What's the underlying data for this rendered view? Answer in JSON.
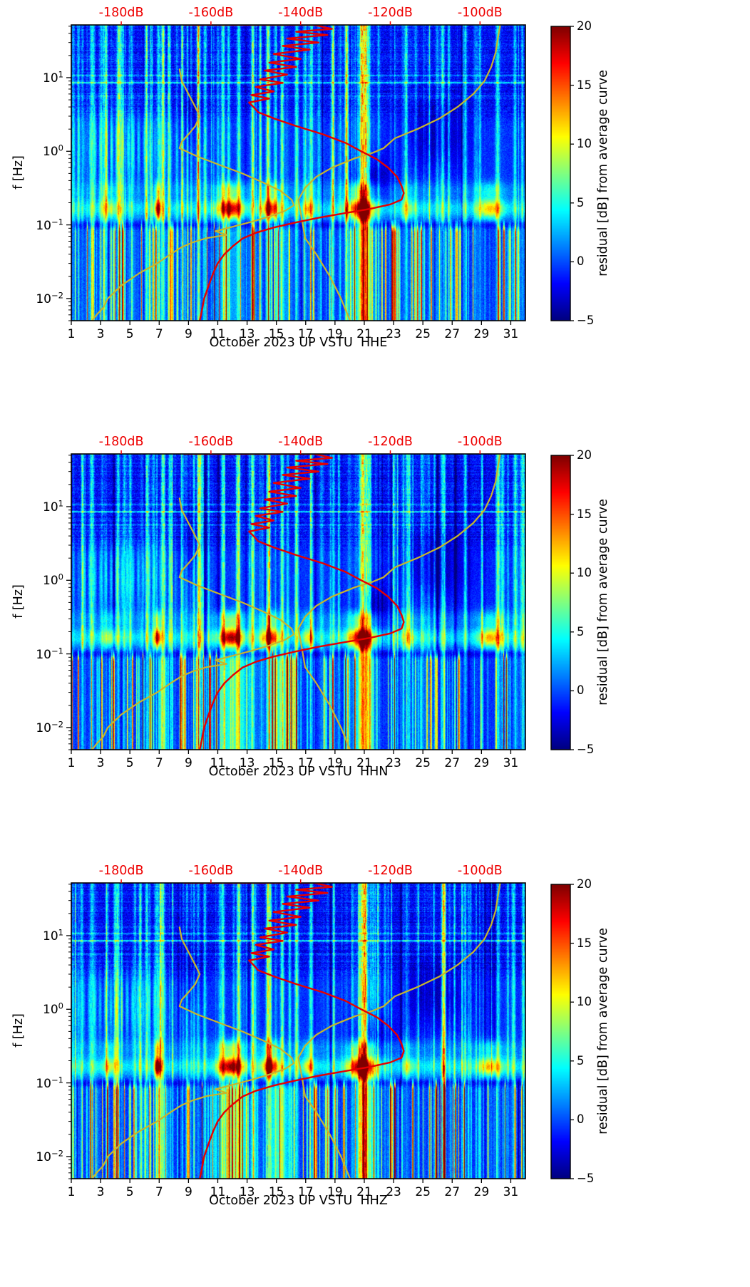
{
  "style": {
    "background": "#ffffff",
    "accent_red": "#ee0000",
    "curve_red": "#e60000",
    "curve_yellow": "#c7b62c",
    "spine": "#000000",
    "colormap": "jet"
  },
  "overlay_curves": {
    "red": [
      [
        52,
        -166
      ],
      [
        52,
        -137
      ],
      [
        46,
        -133
      ],
      [
        42,
        -141
      ],
      [
        38,
        -134
      ],
      [
        34,
        -143
      ],
      [
        30,
        -136
      ],
      [
        27,
        -144
      ],
      [
        24,
        -138
      ],
      [
        21,
        -146
      ],
      [
        18,
        -140
      ],
      [
        16,
        -147
      ],
      [
        14,
        -141
      ],
      [
        12.5,
        -148
      ],
      [
        11,
        -143
      ],
      [
        9.5,
        -149
      ],
      [
        8.5,
        -144
      ],
      [
        7.5,
        -150
      ],
      [
        6.5,
        -146
      ],
      [
        5.8,
        -151
      ],
      [
        5.2,
        -147
      ],
      [
        4.6,
        -151.5
      ],
      [
        4,
        -150.5
      ],
      [
        3.4,
        -149.5
      ],
      [
        2.8,
        -146
      ],
      [
        2.2,
        -141
      ],
      [
        1.7,
        -135
      ],
      [
        1.3,
        -130
      ],
      [
        1,
        -126.5
      ],
      [
        0.78,
        -123
      ],
      [
        0.6,
        -120.5
      ],
      [
        0.45,
        -118.5
      ],
      [
        0.34,
        -117.5
      ],
      [
        0.27,
        -117
      ],
      [
        0.22,
        -117.5
      ],
      [
        0.19,
        -120
      ],
      [
        0.165,
        -124.5
      ],
      [
        0.145,
        -130
      ],
      [
        0.125,
        -136
      ],
      [
        0.108,
        -141
      ],
      [
        0.092,
        -146
      ],
      [
        0.078,
        -150
      ],
      [
        0.065,
        -153
      ],
      [
        0.052,
        -155
      ],
      [
        0.04,
        -157
      ],
      [
        0.03,
        -158.5
      ],
      [
        0.022,
        -159.5
      ],
      [
        0.015,
        -160.5
      ],
      [
        0.01,
        -161.5
      ],
      [
        0.007,
        -162
      ],
      [
        0.005,
        -162.5
      ]
    ],
    "yellow_low": [
      [
        13,
        -167
      ],
      [
        9,
        -166.5
      ],
      [
        6,
        -165
      ],
      [
        4,
        -163.5
      ],
      [
        3,
        -162.5
      ],
      [
        2.2,
        -163.5
      ],
      [
        1.7,
        -165
      ],
      [
        1.35,
        -166.5
      ],
      [
        1.1,
        -167
      ],
      [
        0.85,
        -163
      ],
      [
        0.65,
        -158
      ],
      [
        0.5,
        -153
      ],
      [
        0.38,
        -148.5
      ],
      [
        0.29,
        -144.5
      ],
      [
        0.22,
        -142
      ],
      [
        0.185,
        -141.5
      ],
      [
        0.155,
        -143.5
      ],
      [
        0.13,
        -147
      ],
      [
        0.11,
        -151
      ],
      [
        0.095,
        -155
      ],
      [
        0.082,
        -159
      ],
      [
        0.073,
        -156.5
      ],
      [
        0.066,
        -161
      ],
      [
        0.058,
        -164
      ],
      [
        0.05,
        -166.5
      ],
      [
        0.04,
        -169
      ],
      [
        0.03,
        -172
      ],
      [
        0.022,
        -176
      ],
      [
        0.015,
        -180
      ],
      [
        0.01,
        -183
      ],
      [
        0.0075,
        -184
      ],
      [
        0.006,
        -185.5
      ],
      [
        0.005,
        -186.5
      ]
    ],
    "yellow_high": [
      [
        52,
        -95.5
      ],
      [
        35,
        -96
      ],
      [
        22,
        -96.5
      ],
      [
        14,
        -97.5
      ],
      [
        9,
        -99
      ],
      [
        6,
        -101.5
      ],
      [
        4,
        -105
      ],
      [
        2.8,
        -109
      ],
      [
        2,
        -114
      ],
      [
        1.5,
        -119
      ],
      [
        1.1,
        -121.5
      ],
      [
        0.95,
        -124
      ],
      [
        0.8,
        -128
      ],
      [
        0.6,
        -133
      ],
      [
        0.45,
        -136.5
      ],
      [
        0.32,
        -139
      ],
      [
        0.22,
        -140.5
      ],
      [
        0.15,
        -140
      ],
      [
        0.1,
        -139.5
      ],
      [
        0.066,
        -139
      ],
      [
        0.04,
        -136.5
      ],
      [
        0.02,
        -133.5
      ],
      [
        0.01,
        -131
      ],
      [
        0.006,
        -129.5
      ],
      [
        0.005,
        -129
      ]
    ]
  },
  "spectro_features": {
    "bright_days": [
      {
        "d": 2.4,
        "a": 5,
        "w": 0.15
      },
      {
        "d": 4.2,
        "a": 6,
        "w": 0.12
      },
      {
        "d": 6.15,
        "a": 7,
        "w": 0.1
      },
      {
        "d": 7.25,
        "a": 8,
        "w": 0.12
      },
      {
        "d": 8.6,
        "a": 4,
        "w": 0.1
      },
      {
        "d": 9.7,
        "a": 6,
        "w": 0.12
      },
      {
        "d": 11.35,
        "a": 7,
        "w": 0.12
      },
      {
        "d": 12.45,
        "a": 7,
        "w": 0.14
      },
      {
        "d": 13.4,
        "a": 8,
        "w": 0.12
      },
      {
        "d": 14.45,
        "a": 8,
        "w": 0.14
      },
      {
        "d": 15.4,
        "a": 8,
        "w": 0.12
      },
      {
        "d": 16.4,
        "a": 7,
        "w": 0.12
      },
      {
        "d": 17.4,
        "a": 6,
        "w": 0.1
      },
      {
        "d": 18.9,
        "a": 5,
        "w": 0.1
      },
      {
        "d": 20.95,
        "a": 13,
        "w": 0.28
      },
      {
        "d": 23.9,
        "a": 4,
        "w": 0.1
      },
      {
        "d": 26.35,
        "a": 6,
        "w": 0.12
      },
      {
        "d": 27.9,
        "a": 6,
        "w": 0.1
      },
      {
        "d": 30.1,
        "a": 6,
        "w": 0.15
      },
      {
        "d": 31.3,
        "a": 5,
        "w": 0.1
      }
    ],
    "micro_events": [
      {
        "d": 3.6,
        "a": 5,
        "w": 0.5
      },
      {
        "d": 6.9,
        "a": 14,
        "w": 0.22
      },
      {
        "d": 11.9,
        "a": 15,
        "w": 0.85
      },
      {
        "d": 14.6,
        "a": 13,
        "w": 0.6
      },
      {
        "d": 17.2,
        "a": 7,
        "w": 0.4
      },
      {
        "d": 20.8,
        "a": 15,
        "w": 0.9
      },
      {
        "d": 24.0,
        "a": 4,
        "w": 0.5
      },
      {
        "d": 29.6,
        "a": 9,
        "w": 0.8
      }
    ],
    "plume": {
      "d": 21.0,
      "w": 0.55,
      "a": 8.5
    },
    "low_orange": [
      {
        "d": 12.1,
        "a": 5,
        "w": 1.1
      },
      {
        "d": 15.2,
        "a": 4.5,
        "w": 0.8
      },
      {
        "d": 7.3,
        "a": 3,
        "w": 0.4
      }
    ],
    "dark_zones": [
      {
        "d": 25.8,
        "dw": 2.4,
        "lf": 0.2,
        "lw": 0.5,
        "a": 3.2
      },
      {
        "d": 21.6,
        "dw": 1.3,
        "lf": -0.4,
        "lw": 0.33,
        "a": 3.6
      },
      {
        "d": 9.2,
        "dw": 0.9,
        "lf": 0.55,
        "lw": 0.5,
        "a": 2.2
      }
    ],
    "rows": [
      {
        "lf": 0.93,
        "a": 6,
        "w": 0.012
      },
      {
        "lf": 1.03,
        "a": 3,
        "w": 0.01
      },
      {
        "lf": 0.75,
        "a": 2.5,
        "w": 0.009
      }
    ]
  },
  "chart_data": [
    {
      "type": "heatmap",
      "subtype": "spectrogram",
      "xlabel": "October 2023 UP VSTU  HHE",
      "ylabel": "f [Hz]",
      "x_range": [
        1,
        32
      ],
      "x_ticks": [
        1,
        3,
        5,
        7,
        9,
        11,
        13,
        15,
        17,
        19,
        21,
        23,
        25,
        27,
        29,
        31
      ],
      "f_range": [
        0.005,
        52
      ],
      "y_ticks": [
        {
          "f": 10,
          "exp": "1"
        },
        {
          "f": 1,
          "exp": "0"
        },
        {
          "f": 0.1,
          "exp": "−1"
        },
        {
          "f": 0.01,
          "exp": "−2"
        }
      ],
      "top_axis": {
        "ticks": [
          -180,
          -160,
          -140,
          -120,
          -100
        ],
        "labels": [
          "-180dB",
          "-160dB",
          "-140dB",
          "-120dB",
          "-100dB"
        ],
        "db0": -180,
        "frac0": 0.11,
        "frac_per_db": 0.009875
      },
      "colorbar": {
        "label": "residual [dB] from average curve",
        "range": [
          -5,
          20
        ],
        "ticks": [
          20,
          15,
          10,
          5,
          0,
          -5
        ],
        "tick_labels": [
          "20",
          "15",
          "10",
          "5",
          "0",
          "−5"
        ]
      },
      "seed": 101,
      "micro_scale": 1.0,
      "low_orange_scale": 0.55,
      "low_stripe_scale": 1.0
    },
    {
      "type": "heatmap",
      "subtype": "spectrogram",
      "xlabel": "October 2023 UP VSTU  HHN",
      "ylabel": "f [Hz]",
      "x_range": [
        1,
        32
      ],
      "x_ticks": [
        1,
        3,
        5,
        7,
        9,
        11,
        13,
        15,
        17,
        19,
        21,
        23,
        25,
        27,
        29,
        31
      ],
      "f_range": [
        0.005,
        52
      ],
      "y_ticks": [
        {
          "f": 10,
          "exp": "1"
        },
        {
          "f": 1,
          "exp": "0"
        },
        {
          "f": 0.1,
          "exp": "−1"
        },
        {
          "f": 0.01,
          "exp": "−2"
        }
      ],
      "top_axis": {
        "ticks": [
          -180,
          -160,
          -140,
          -120,
          -100
        ],
        "labels": [
          "-180dB",
          "-160dB",
          "-140dB",
          "-120dB",
          "-100dB"
        ],
        "db0": -180,
        "frac0": 0.11,
        "frac_per_db": 0.009875
      },
      "colorbar": {
        "label": "residual [dB] from average curve",
        "range": [
          -5,
          20
        ],
        "ticks": [
          20,
          15,
          10,
          5,
          0,
          -5
        ],
        "tick_labels": [
          "20",
          "15",
          "10",
          "5",
          "0",
          "−5"
        ]
      },
      "seed": 202,
      "micro_scale": 1.05,
      "low_orange_scale": 1.25,
      "low_stripe_scale": 1.15
    },
    {
      "type": "heatmap",
      "subtype": "spectrogram",
      "xlabel": "October 2023 UP VSTU  HHZ",
      "ylabel": "f [Hz]",
      "x_range": [
        1,
        32
      ],
      "x_ticks": [
        1,
        3,
        5,
        7,
        9,
        11,
        13,
        15,
        17,
        19,
        21,
        23,
        25,
        27,
        29,
        31
      ],
      "f_range": [
        0.005,
        52
      ],
      "y_ticks": [
        {
          "f": 10,
          "exp": "1"
        },
        {
          "f": 1,
          "exp": "0"
        },
        {
          "f": 0.1,
          "exp": "−1"
        },
        {
          "f": 0.01,
          "exp": "−2"
        }
      ],
      "top_axis": {
        "ticks": [
          -180,
          -160,
          -140,
          -120,
          -100
        ],
        "labels": [
          "-180dB",
          "-160dB",
          "-140dB",
          "-120dB",
          "-100dB"
        ],
        "db0": -180,
        "frac0": 0.11,
        "frac_per_db": 0.009875
      },
      "colorbar": {
        "label": "residual [dB] from average curve",
        "range": [
          -5,
          20
        ],
        "ticks": [
          20,
          15,
          10,
          5,
          0,
          -5
        ],
        "tick_labels": [
          "20",
          "15",
          "10",
          "5",
          "0",
          "−5"
        ]
      },
      "seed": 303,
      "micro_scale": 1.08,
      "low_orange_scale": 1.35,
      "low_stripe_scale": 1.25
    }
  ]
}
